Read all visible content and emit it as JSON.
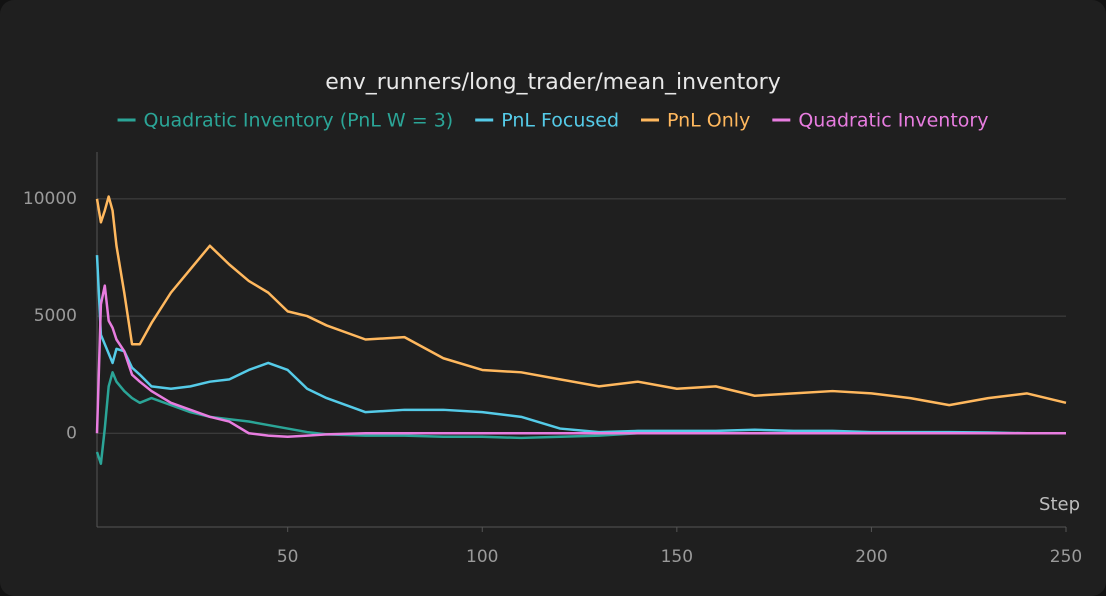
{
  "chart_data": {
    "type": "line",
    "title": "env_runners/long_trader/mean_inventory",
    "x_label": "Step",
    "x": [
      1,
      2,
      3,
      4,
      5,
      6,
      8,
      10,
      12,
      15,
      20,
      25,
      30,
      35,
      40,
      45,
      50,
      55,
      60,
      70,
      80,
      90,
      100,
      110,
      120,
      130,
      140,
      150,
      160,
      170,
      180,
      190,
      200,
      210,
      220,
      230,
      240,
      250
    ],
    "series": [
      {
        "name": "Quadratic Inventory (PnL W = 3)",
        "color": "#2ba597",
        "values": [
          -800,
          -1300,
          200,
          2000,
          2600,
          2200,
          1800,
          1500,
          1300,
          1500,
          1200,
          900,
          700,
          600,
          500,
          350,
          200,
          50,
          -50,
          -100,
          -100,
          -150,
          -150,
          -200,
          -150,
          -100,
          0,
          0,
          0,
          0,
          0,
          0,
          0,
          0,
          0,
          0,
          0,
          0
        ]
      },
      {
        "name": "PnL Focused",
        "color": "#55cbe8",
        "values": [
          7600,
          4200,
          3800,
          3400,
          3000,
          3600,
          3500,
          2800,
          2500,
          2000,
          1900,
          2000,
          2200,
          2300,
          2700,
          3000,
          2700,
          1900,
          1500,
          900,
          1000,
          1000,
          900,
          700,
          200,
          50,
          100,
          100,
          100,
          150,
          100,
          100,
          50,
          50,
          50,
          30,
          0,
          0
        ]
      },
      {
        "name": "PnL Only",
        "color": "#ffb85e",
        "values": [
          10000,
          9000,
          9500,
          10100,
          9500,
          8000,
          6000,
          3800,
          3800,
          4700,
          6000,
          7000,
          8000,
          7200,
          6500,
          6000,
          5200,
          5000,
          4600,
          4000,
          4100,
          3200,
          2700,
          2600,
          2300,
          2000,
          2200,
          1900,
          2000,
          1600,
          1700,
          1800,
          1700,
          1500,
          1200,
          1500,
          1700,
          1300
        ]
      },
      {
        "name": "Quadratic Inventory",
        "color": "#e87de0",
        "values": [
          0,
          5500,
          6300,
          4800,
          4500,
          4000,
          3500,
          2500,
          2200,
          1800,
          1300,
          1000,
          700,
          500,
          0,
          -100,
          -150,
          -100,
          -50,
          0,
          0,
          0,
          0,
          0,
          0,
          0,
          0,
          0,
          0,
          0,
          0,
          0,
          0,
          0,
          0,
          0,
          0,
          0
        ]
      }
    ],
    "xlim": [
      1,
      250
    ],
    "ylim": [
      -4000,
      12000
    ],
    "xticks": [
      50,
      100,
      150,
      200,
      250
    ],
    "yticks": [
      0,
      5000,
      10000
    ],
    "grid": true
  }
}
